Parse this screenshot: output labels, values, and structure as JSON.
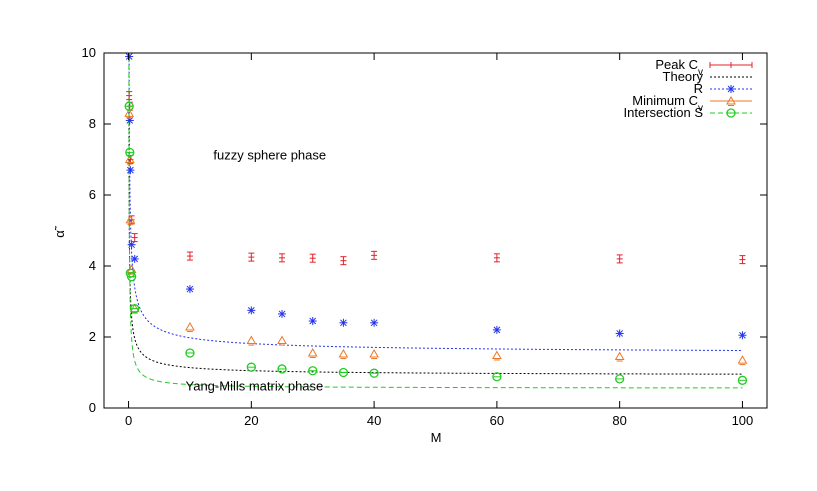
{
  "chart_data": {
    "type": "scatter",
    "title": "",
    "xlabel": "M",
    "ylabel": "α̃",
    "xlim": [
      -4,
      104
    ],
    "ylim": [
      0,
      10
    ],
    "xticks": [
      0,
      20,
      40,
      60,
      80,
      100
    ],
    "yticks": [
      0,
      2,
      4,
      6,
      8,
      10
    ],
    "grid": false,
    "legend_position": "top-right",
    "annotations": [
      {
        "text": "fuzzy sphere phase",
        "x": 23,
        "y": 7.0
      },
      {
        "text": "Yang-Mills matrix phase",
        "x": 20.5,
        "y": 0.5
      }
    ],
    "series": [
      {
        "name": "Peak C",
        "name_sub": "v",
        "color": "#e8202a",
        "marker": "plus-errorbar",
        "points": [
          {
            "x": 0.1,
            "y": 8.8
          },
          {
            "x": 0.2,
            "y": 8.5
          },
          {
            "x": 0.3,
            "y": 7.0
          },
          {
            "x": 0.5,
            "y": 5.3
          },
          {
            "x": 1,
            "y": 4.8
          },
          {
            "x": 10,
            "y": 4.28
          },
          {
            "x": 20,
            "y": 4.25
          },
          {
            "x": 25,
            "y": 4.23
          },
          {
            "x": 30,
            "y": 4.22
          },
          {
            "x": 35,
            "y": 4.15
          },
          {
            "x": 40,
            "y": 4.3
          },
          {
            "x": 60,
            "y": 4.23
          },
          {
            "x": 80,
            "y": 4.2
          },
          {
            "x": 100,
            "y": 4.18
          }
        ]
      },
      {
        "name": "Theory",
        "color": "#000000",
        "line": "dotted",
        "curve": {
          "a": 0.9,
          "b": 1.06,
          "p": 0.65
        }
      },
      {
        "name": "R",
        "color": "#2233ee",
        "marker": "star",
        "line": "dotted",
        "curve": {
          "a": 1.5,
          "b": 1.9,
          "p": 0.6
        },
        "points": [
          {
            "x": 0.1,
            "y": 9.9
          },
          {
            "x": 0.2,
            "y": 8.1
          },
          {
            "x": 0.3,
            "y": 6.7
          },
          {
            "x": 0.5,
            "y": 4.6
          },
          {
            "x": 1,
            "y": 4.2
          },
          {
            "x": 10,
            "y": 3.35
          },
          {
            "x": 20,
            "y": 2.75
          },
          {
            "x": 25,
            "y": 2.65
          },
          {
            "x": 30,
            "y": 2.45
          },
          {
            "x": 35,
            "y": 2.4
          },
          {
            "x": 40,
            "y": 2.4
          },
          {
            "x": 60,
            "y": 2.2
          },
          {
            "x": 80,
            "y": 2.1
          },
          {
            "x": 100,
            "y": 2.05
          }
        ]
      },
      {
        "name": "Minimum C",
        "name_sub": "v",
        "color": "#ee7722",
        "marker": "triangle",
        "points": [
          {
            "x": 0.1,
            "y": 8.3
          },
          {
            "x": 0.2,
            "y": 7.0
          },
          {
            "x": 0.3,
            "y": 5.3
          },
          {
            "x": 0.5,
            "y": 3.9
          },
          {
            "x": 1,
            "y": 2.8
          },
          {
            "x": 10,
            "y": 2.28
          },
          {
            "x": 20,
            "y": 1.9
          },
          {
            "x": 25,
            "y": 1.9
          },
          {
            "x": 30,
            "y": 1.55
          },
          {
            "x": 35,
            "y": 1.52
          },
          {
            "x": 40,
            "y": 1.52
          },
          {
            "x": 60,
            "y": 1.48
          },
          {
            "x": 80,
            "y": 1.45
          },
          {
            "x": 100,
            "y": 1.35
          }
        ]
      },
      {
        "name": "Intersection S",
        "color": "#22cc22",
        "marker": "circle",
        "line": "dashed",
        "curve": {
          "a": 0.55,
          "b": 0.78,
          "p": 0.85
        },
        "points": [
          {
            "x": 0.1,
            "y": 8.5
          },
          {
            "x": 0.2,
            "y": 7.2
          },
          {
            "x": 0.3,
            "y": 3.8
          },
          {
            "x": 0.5,
            "y": 3.7
          },
          {
            "x": 1,
            "y": 2.8
          },
          {
            "x": 10,
            "y": 1.55
          },
          {
            "x": 20,
            "y": 1.15
          },
          {
            "x": 25,
            "y": 1.1
          },
          {
            "x": 30,
            "y": 1.05
          },
          {
            "x": 35,
            "y": 1.0
          },
          {
            "x": 40,
            "y": 0.98
          },
          {
            "x": 60,
            "y": 0.88
          },
          {
            "x": 80,
            "y": 0.82
          },
          {
            "x": 100,
            "y": 0.78
          }
        ]
      }
    ]
  }
}
